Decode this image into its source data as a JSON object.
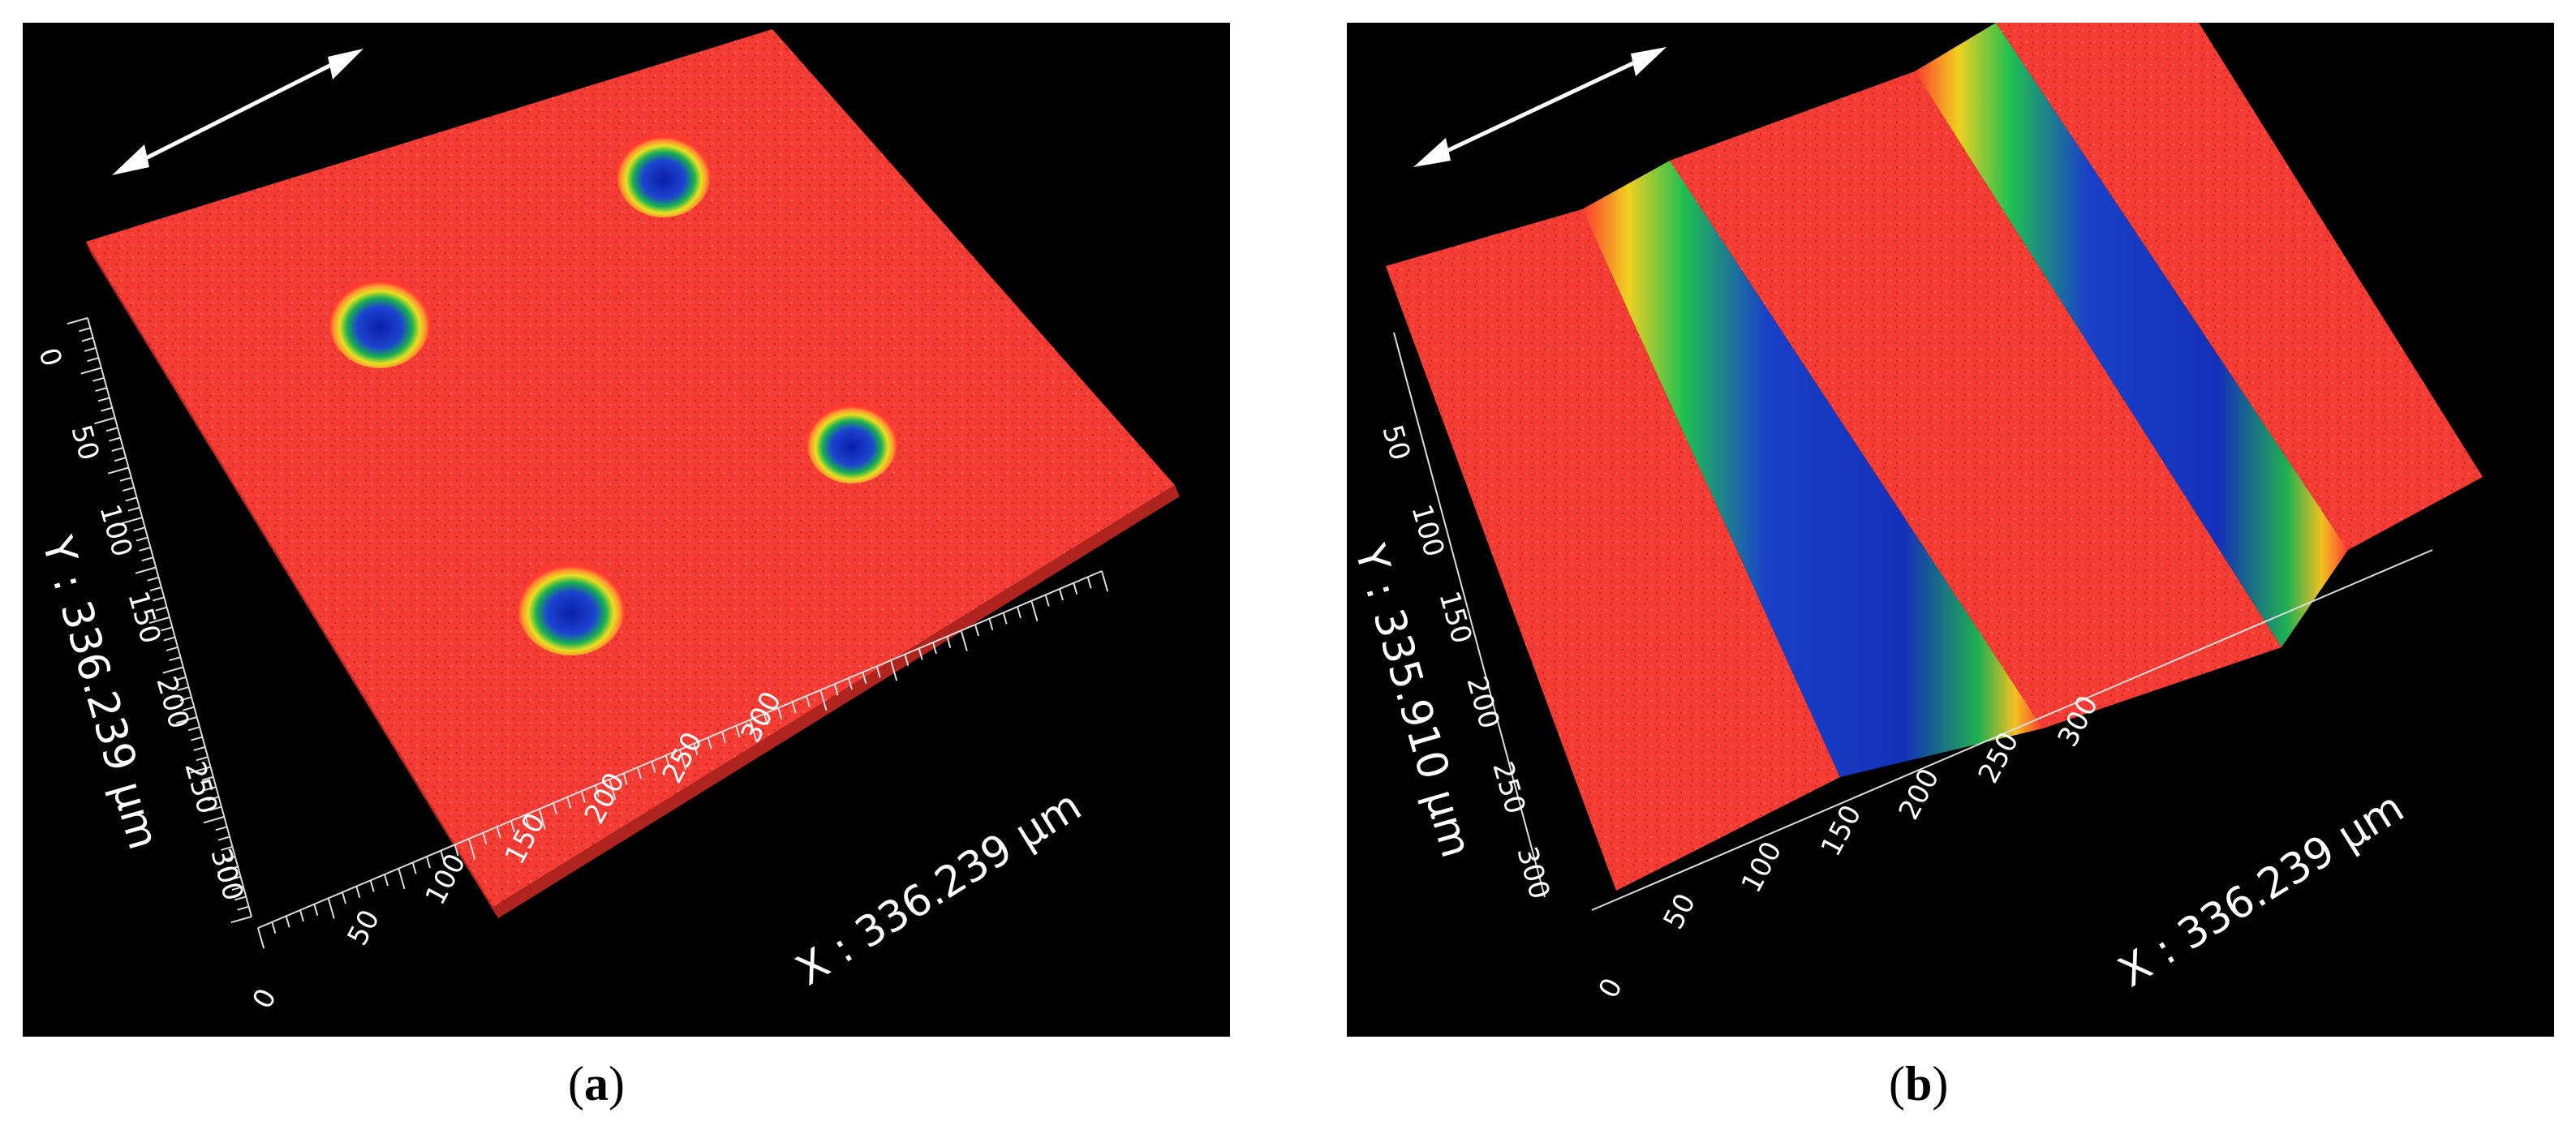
{
  "figure": {
    "panels": [
      {
        "id": "a",
        "caption": "a",
        "y_axis_label": "Y : 336.239 µm",
        "x_axis_label": "X : 336.239 µm",
        "y_ticks": [
          "0",
          "50",
          "100",
          "150",
          "200",
          "250",
          "300"
        ],
        "x_ticks": [
          "0",
          "50",
          "100",
          "150",
          "200",
          "250",
          "300"
        ],
        "surface_feature": "four circular pits",
        "colors": {
          "surface": "#ff3030",
          "deep": "#1030c0",
          "mid": "#20c040",
          "background": "#000000"
        }
      },
      {
        "id": "b",
        "caption": "b",
        "y_axis_label": "Y : 335.910 µm",
        "x_axis_label": "X : 336.239 µm",
        "y_ticks": [
          "50",
          "100",
          "150",
          "200",
          "250",
          "300"
        ],
        "x_ticks": [
          "0",
          "50",
          "100",
          "150",
          "200",
          "250",
          "300"
        ],
        "surface_feature": "two parallel grooves",
        "colors": {
          "surface": "#ff3030",
          "deep": "#1030c0",
          "mid": "#20c040",
          "background": "#000000"
        }
      }
    ]
  }
}
